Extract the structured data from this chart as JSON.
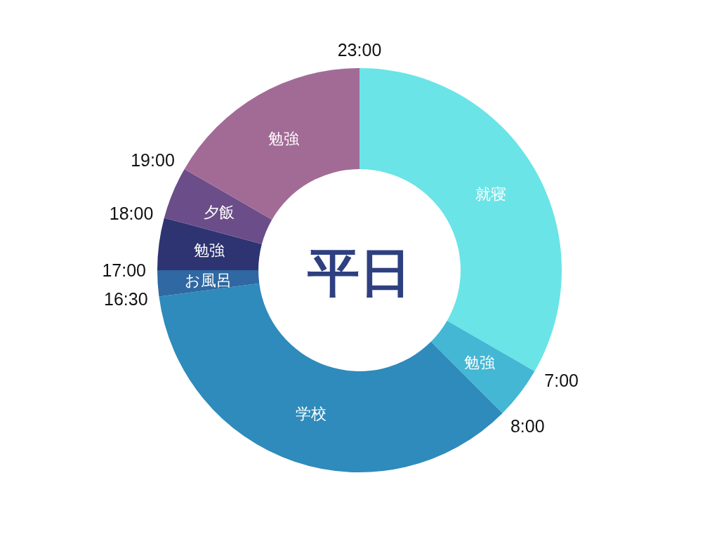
{
  "chart_data": {
    "type": "donut",
    "title": "平日",
    "categories": [
      "就寝",
      "勉強",
      "学校",
      "お風呂",
      "勉強",
      "夕飯",
      "勉強"
    ],
    "values": [
      33.33,
      4.17,
      35.42,
      2.08,
      4.17,
      4.17,
      16.66
    ],
    "colors": [
      "#6ae4e7",
      "#44b7d4",
      "#2e8bbb",
      "#2f68a2",
      "#2e3471",
      "#6b4d89",
      "#a26b96"
    ],
    "annotations": [
      "23:00",
      "7:00",
      "8:00",
      "16:30",
      "17:00",
      "18:00",
      "19:00"
    ]
  }
}
